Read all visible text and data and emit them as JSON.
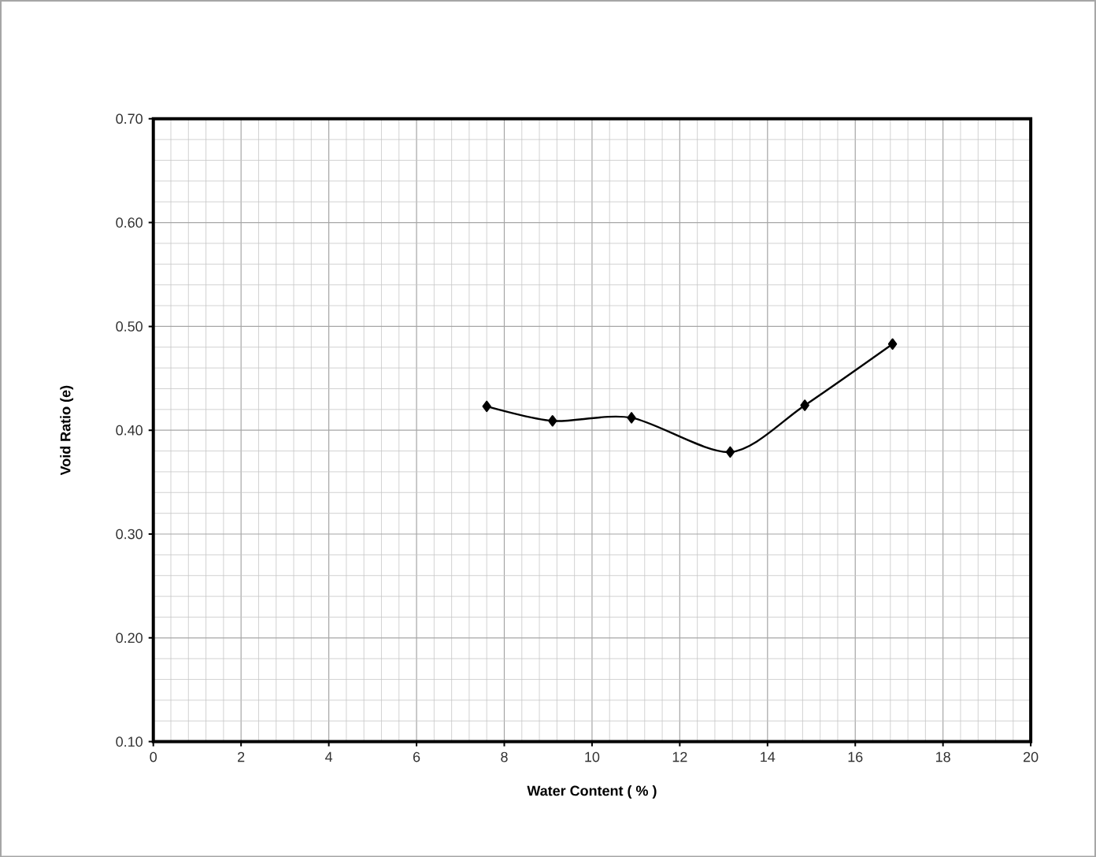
{
  "chart_data": {
    "type": "line",
    "xlabel": "Water Content ( % )",
    "ylabel": "Void  Ratio  (e)",
    "x": [
      7.6,
      9.1,
      10.9,
      13.15,
      14.85,
      16.85
    ],
    "series": [
      {
        "color": "#000000",
        "values": [
          0.423,
          0.409,
          0.412,
          0.379,
          0.424,
          0.483
        ]
      }
    ],
    "xlim": [
      0,
      20
    ],
    "xticks": [
      0,
      2,
      4,
      6,
      8,
      10,
      12,
      14,
      16,
      18,
      20
    ],
    "ylim": [
      0.1,
      0.7
    ],
    "yticks": [
      {
        "value": 0.1,
        "label": "0.10"
      },
      {
        "value": 0.2,
        "label": "0.20"
      },
      {
        "value": 0.3,
        "label": "0.30"
      },
      {
        "value": 0.4,
        "label": "0.40"
      },
      {
        "value": 0.5,
        "label": "0.50"
      },
      {
        "value": 0.6,
        "label": "0.60"
      },
      {
        "value": 0.7,
        "label": "0.70"
      }
    ],
    "grid": true,
    "marker": "diamond",
    "line_style": "solid"
  }
}
